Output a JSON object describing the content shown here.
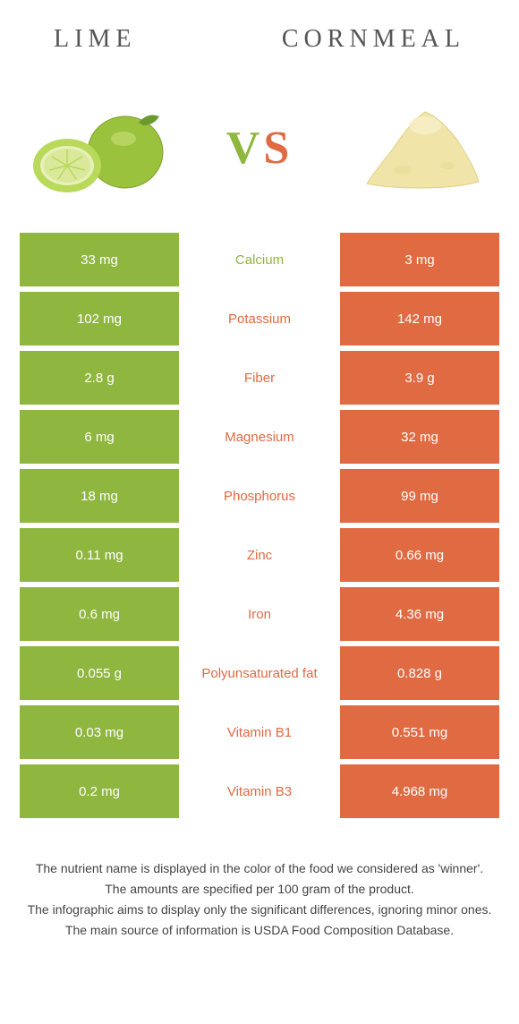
{
  "header": {
    "left_title": "LIME",
    "right_title": "CORNMEAL"
  },
  "vs": {
    "v": "V",
    "s": "S"
  },
  "colors": {
    "left": "#8fb63f",
    "right": "#e06a42",
    "mid_bg": "#ffffff"
  },
  "table": {
    "rows": [
      {
        "left": "33 mg",
        "name": "Calcium",
        "right": "3 mg",
        "winner": "left"
      },
      {
        "left": "102 mg",
        "name": "Potassium",
        "right": "142 mg",
        "winner": "right"
      },
      {
        "left": "2.8 g",
        "name": "Fiber",
        "right": "3.9 g",
        "winner": "right"
      },
      {
        "left": "6 mg",
        "name": "Magnesium",
        "right": "32 mg",
        "winner": "right"
      },
      {
        "left": "18 mg",
        "name": "Phosphorus",
        "right": "99 mg",
        "winner": "right"
      },
      {
        "left": "0.11 mg",
        "name": "Zinc",
        "right": "0.66 mg",
        "winner": "right"
      },
      {
        "left": "0.6 mg",
        "name": "Iron",
        "right": "4.36 mg",
        "winner": "right"
      },
      {
        "left": "0.055 g",
        "name": "Polyunsaturated fat",
        "right": "0.828 g",
        "winner": "right"
      },
      {
        "left": "0.03 mg",
        "name": "Vitamin B1",
        "right": "0.551 mg",
        "winner": "right"
      },
      {
        "left": "0.2 mg",
        "name": "Vitamin B3",
        "right": "4.968 mg",
        "winner": "right"
      }
    ]
  },
  "footnotes": [
    "The nutrient name is displayed in the color of the food we considered as 'winner'.",
    "The amounts are specified per 100 gram of the product.",
    "The infographic aims to display only the significant differences, ignoring minor ones.",
    "The main source of information is USDA Food Composition Database."
  ]
}
